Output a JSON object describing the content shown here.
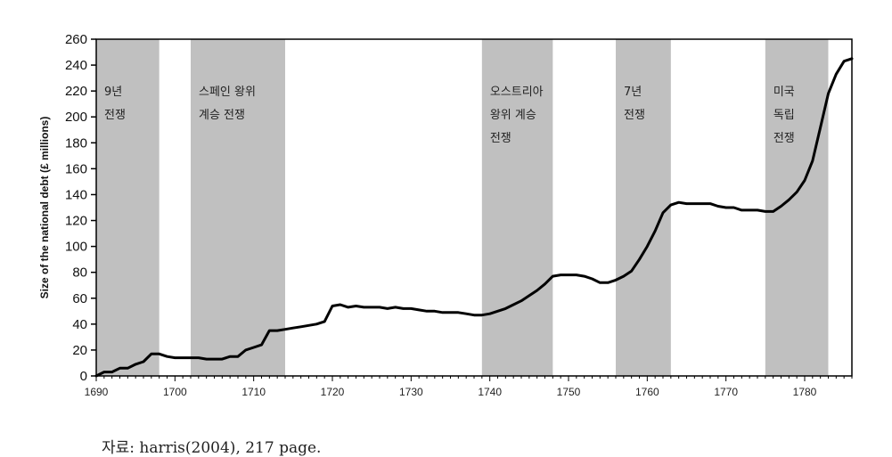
{
  "source_note": "자료: harris(2004), 217 page.",
  "chart_data": {
    "type": "line",
    "title": "",
    "xlabel": "",
    "ylabel": "Size of the national debt (£ millions)",
    "xlim": [
      1690,
      1786
    ],
    "ylim": [
      0,
      260
    ],
    "xticks": [
      1690,
      1700,
      1710,
      1720,
      1730,
      1740,
      1750,
      1760,
      1770,
      1780
    ],
    "yticks": [
      0,
      20,
      40,
      60,
      80,
      100,
      120,
      140,
      160,
      180,
      200,
      220,
      240,
      260
    ],
    "grid": false,
    "line_color": "#000000",
    "band_color": "#c0c0c0",
    "war_periods": [
      {
        "start": 1689,
        "end": 1698,
        "label_lines": [
          "9년",
          "전쟁"
        ]
      },
      {
        "start": 1702,
        "end": 1714,
        "label_lines": [
          "스페인 왕위",
          "계승 전쟁"
        ]
      },
      {
        "start": 1739,
        "end": 1748,
        "label_lines": [
          "오스트리아",
          "왕위 계승",
          "전쟁"
        ]
      },
      {
        "start": 1756,
        "end": 1763,
        "label_lines": [
          "7년",
          "전쟁"
        ]
      },
      {
        "start": 1775,
        "end": 1783,
        "label_lines": [
          "미국",
          "독립",
          "전쟁"
        ]
      }
    ],
    "series": [
      {
        "name": "",
        "x": [
          1690,
          1691,
          1692,
          1693,
          1694,
          1695,
          1696,
          1697,
          1698,
          1699,
          1700,
          1701,
          1702,
          1703,
          1704,
          1705,
          1706,
          1707,
          1708,
          1709,
          1710,
          1711,
          1712,
          1713,
          1714,
          1715,
          1716,
          1717,
          1718,
          1719,
          1720,
          1721,
          1722,
          1723,
          1724,
          1725,
          1726,
          1727,
          1728,
          1729,
          1730,
          1731,
          1732,
          1733,
          1734,
          1735,
          1736,
          1737,
          1738,
          1739,
          1740,
          1741,
          1742,
          1743,
          1744,
          1745,
          1746,
          1747,
          1748,
          1749,
          1750,
          1751,
          1752,
          1753,
          1754,
          1755,
          1756,
          1757,
          1758,
          1759,
          1760,
          1761,
          1762,
          1763,
          1764,
          1765,
          1766,
          1767,
          1768,
          1769,
          1770,
          1771,
          1772,
          1773,
          1774,
          1775,
          1776,
          1777,
          1778,
          1779,
          1780,
          1781,
          1782,
          1783,
          1784,
          1785,
          1786
        ],
        "values": [
          0,
          3,
          3,
          6,
          6,
          9,
          11,
          17,
          17,
          15,
          14,
          14,
          14,
          14,
          13,
          13,
          13,
          15,
          15,
          20,
          22,
          24,
          35,
          35,
          36,
          37,
          38,
          39,
          40,
          42,
          54,
          55,
          53,
          54,
          53,
          53,
          53,
          52,
          53,
          52,
          52,
          51,
          50,
          50,
          49,
          49,
          49,
          48,
          47,
          47,
          48,
          50,
          52,
          55,
          58,
          62,
          66,
          71,
          77,
          78,
          78,
          78,
          77,
          75,
          72,
          72,
          74,
          77,
          81,
          90,
          100,
          112,
          126,
          132,
          134,
          133,
          133,
          133,
          133,
          131,
          130,
          130,
          128,
          128,
          128,
          127,
          127,
          131,
          136,
          142,
          151,
          166,
          192,
          218,
          233,
          243,
          245
        ]
      }
    ]
  }
}
